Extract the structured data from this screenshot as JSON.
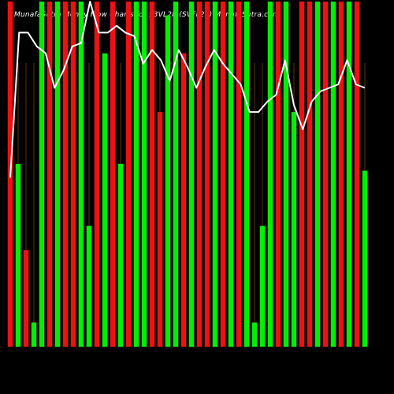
{
  "chart_data": {
    "type": "bar",
    "title": "MunafaSutra Money Flow Charts for 93VL28 (SVFL28) MunafaSutra.com",
    "series": [
      {
        "name": "Volume bars",
        "values": [
          100,
          53,
          28,
          7,
          100,
          100,
          100,
          100,
          100,
          100,
          35,
          100,
          85,
          100,
          53,
          100,
          100,
          100,
          100,
          68,
          96,
          100,
          85,
          100,
          100,
          100,
          100,
          100,
          100,
          100,
          100,
          7,
          35,
          100,
          100,
          100,
          68,
          100,
          100,
          100,
          100,
          100,
          100,
          100,
          100,
          51
        ],
        "colors": [
          "red",
          "green",
          "red",
          "green",
          "green",
          "red",
          "green",
          "red",
          "red",
          "green",
          "green",
          "red",
          "green",
          "red",
          "green",
          "red",
          "green",
          "green",
          "red",
          "red",
          "green",
          "green",
          "red",
          "green",
          "red",
          "red",
          "green",
          "red",
          "green",
          "red",
          "green",
          "green",
          "green",
          "green",
          "red",
          "green",
          "green",
          "red",
          "red",
          "green",
          "red",
          "green",
          "red",
          "green",
          "red",
          "green"
        ]
      },
      {
        "name": "Price line",
        "values": [
          49,
          91,
          91,
          87,
          85,
          75,
          80,
          87,
          88,
          100,
          91,
          91,
          93,
          91,
          90,
          82,
          86,
          83,
          77,
          86,
          81,
          75,
          81,
          86,
          82,
          79,
          76,
          68,
          68,
          71,
          73,
          83,
          70,
          63,
          71,
          74,
          75,
          76,
          83,
          76,
          75
        ]
      }
    ],
    "ylim": [
      0,
      100
    ],
    "grid": false,
    "legend": "none",
    "colors": {
      "background": "#000000",
      "green": "#00ee00",
      "red": "#ee1111",
      "line": "#ffffff",
      "guide": "#9a5a12"
    }
  }
}
